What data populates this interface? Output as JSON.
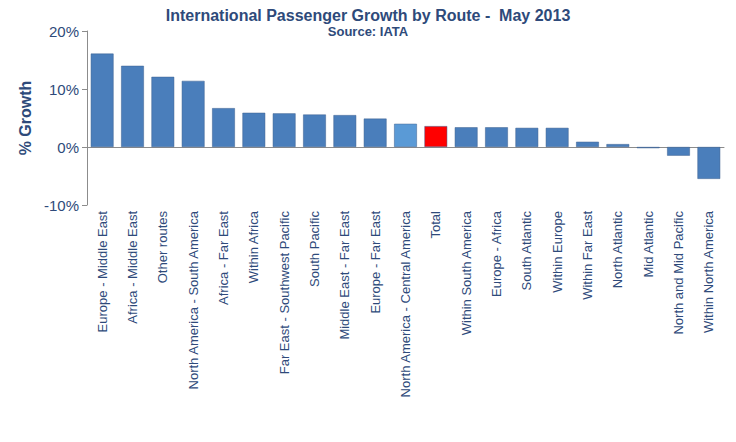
{
  "chart_data": {
    "type": "bar",
    "title": "International Passenger Growth by Route -  May 2013",
    "subtitle": "Source: IATA",
    "y_label": "% Growth",
    "categories": [
      "Europe - Middle East",
      "Africa - Middle East",
      "Other routes",
      "North America - South America",
      "Africa - Far East",
      "Within Africa",
      "Far East - Southwest Pacific",
      "South Pacific",
      "Middle East - Far East",
      "Europe - Far East",
      "North America - Central America",
      "Total",
      "Within South America",
      "Europe - Africa",
      "South Atlantic",
      "Within Europe",
      "Within Far East",
      "North Atlantic",
      "Mid Atlantic",
      "North and Mid Pacific",
      "Within North America"
    ],
    "values": [
      16.1,
      14.0,
      12.1,
      11.4,
      6.7,
      5.9,
      5.8,
      5.6,
      5.5,
      4.9,
      4.0,
      3.6,
      3.4,
      3.4,
      3.3,
      3.3,
      0.9,
      0.5,
      -0.2,
      -1.5,
      -5.5
    ],
    "colors": [
      "#4a7ebb",
      "#4a7ebb",
      "#4a7ebb",
      "#4a7ebb",
      "#4a7ebb",
      "#4a7ebb",
      "#4a7ebb",
      "#4a7ebb",
      "#4a7ebb",
      "#4a7ebb",
      "#5a9ad6",
      "#ff0000",
      "#4a7ebb",
      "#4a7ebb",
      "#4a7ebb",
      "#4a7ebb",
      "#4a7ebb",
      "#4a7ebb",
      "#4a7ebb",
      "#4a7ebb",
      "#4a7ebb"
    ],
    "ylim": [
      -10,
      20
    ],
    "yticks": [
      {
        "value": -10,
        "label": "-10%"
      },
      {
        "value": 0,
        "label": "0%"
      },
      {
        "value": 10,
        "label": "10%"
      },
      {
        "value": 20,
        "label": "20%"
      }
    ],
    "grid": false
  }
}
